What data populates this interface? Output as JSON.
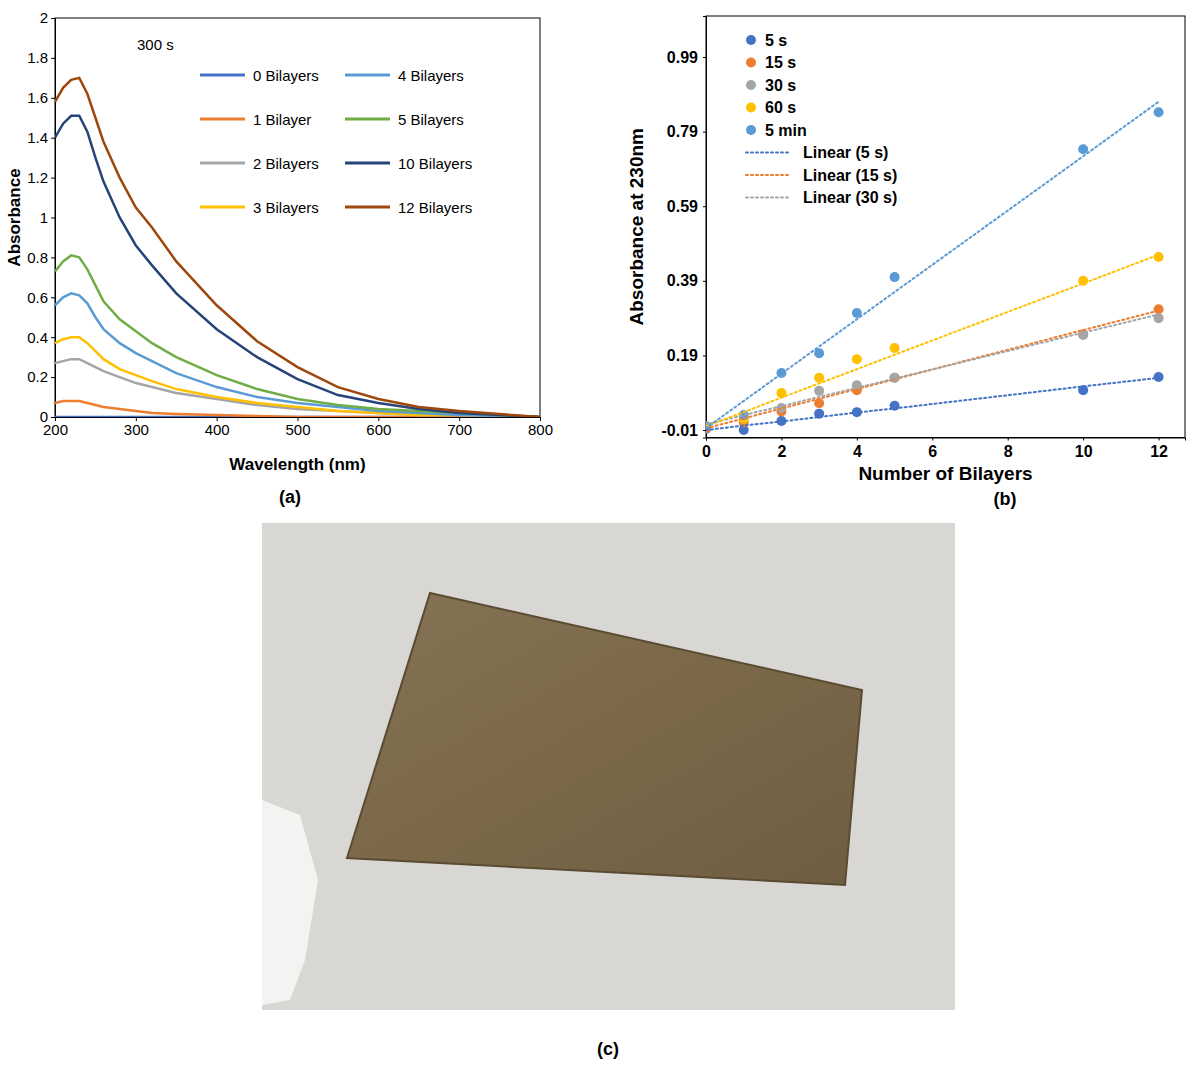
{
  "chart_data": [
    {
      "type": "line",
      "annotations": [
        "300 s"
      ],
      "x_label": "Wavelength (nm)",
      "y_label": "Absorbance",
      "x": [
        200,
        210,
        220,
        230,
        240,
        250,
        260,
        280,
        300,
        320,
        350,
        400,
        450,
        500,
        550,
        600,
        650,
        700,
        750,
        800
      ],
      "xlim": [
        200,
        800
      ],
      "xticks": [
        200,
        300,
        400,
        500,
        600,
        700,
        800
      ],
      "ylim": [
        0,
        2
      ],
      "yticks": [
        0,
        0.2,
        0.4,
        0.6,
        0.8,
        1,
        1.2,
        1.4,
        1.6,
        1.8,
        2
      ],
      "legend": "top-right",
      "series": [
        {
          "name": "0 Bilayers",
          "color": "#4472c4",
          "values": [
            0,
            0,
            0,
            0,
            0,
            0,
            0,
            0,
            0,
            0,
            0,
            0,
            0,
            0,
            0,
            0,
            0,
            0,
            0,
            0
          ]
        },
        {
          "name": "1 Bilayer",
          "color": "#ed7d31",
          "values": [
            0.07,
            0.08,
            0.08,
            0.08,
            0.07,
            0.06,
            0.05,
            0.04,
            0.03,
            0.02,
            0.015,
            0.01,
            0.005,
            0,
            0,
            0,
            0,
            0,
            0,
            0
          ]
        },
        {
          "name": "2 Bilayers",
          "color": "#a5a5a5",
          "values": [
            0.27,
            0.28,
            0.29,
            0.29,
            0.27,
            0.25,
            0.23,
            0.2,
            0.17,
            0.15,
            0.12,
            0.09,
            0.06,
            0.04,
            0.03,
            0.02,
            0.01,
            0.01,
            0.005,
            0
          ]
        },
        {
          "name": "3 Bilayers",
          "color": "#ffc000",
          "values": [
            0.37,
            0.39,
            0.4,
            0.4,
            0.37,
            0.33,
            0.29,
            0.24,
            0.21,
            0.18,
            0.14,
            0.1,
            0.07,
            0.05,
            0.03,
            0.02,
            0.01,
            0.01,
            0.005,
            0
          ]
        },
        {
          "name": "4 Bilayers",
          "color": "#5b9bd5",
          "values": [
            0.56,
            0.6,
            0.62,
            0.61,
            0.57,
            0.5,
            0.44,
            0.37,
            0.32,
            0.28,
            0.22,
            0.15,
            0.1,
            0.07,
            0.05,
            0.03,
            0.02,
            0.01,
            0.005,
            0
          ]
        },
        {
          "name": "5 Bilayers",
          "color": "#70ad47",
          "values": [
            0.73,
            0.78,
            0.81,
            0.8,
            0.74,
            0.66,
            0.58,
            0.49,
            0.43,
            0.37,
            0.3,
            0.21,
            0.14,
            0.09,
            0.06,
            0.04,
            0.03,
            0.02,
            0.01,
            0
          ]
        },
        {
          "name": "10 Bilayers",
          "color": "#264478",
          "values": [
            1.4,
            1.47,
            1.51,
            1.51,
            1.43,
            1.3,
            1.18,
            1,
            0.86,
            0.76,
            0.62,
            0.44,
            0.3,
            0.19,
            0.11,
            0.07,
            0.04,
            0.02,
            0.01,
            0
          ]
        },
        {
          "name": "12 Bilayers",
          "color": "#9e480e",
          "values": [
            1.58,
            1.65,
            1.69,
            1.7,
            1.62,
            1.5,
            1.38,
            1.2,
            1.05,
            0.95,
            0.78,
            0.56,
            0.38,
            0.25,
            0.15,
            0.09,
            0.05,
            0.03,
            0.015,
            0
          ]
        }
      ]
    },
    {
      "type": "scatter",
      "x_label": "Number of Bilayers",
      "y_label": "Absorbance at 230nm",
      "x": [
        0,
        1,
        2,
        3,
        4,
        5,
        10,
        12
      ],
      "xlim": [
        0,
        12.7
      ],
      "xticks": [
        0,
        2,
        4,
        6,
        8,
        10,
        12
      ],
      "ylim": [
        -0.03,
        1.1
      ],
      "yticks": [
        -0.01,
        0.19,
        0.39,
        0.59,
        0.79,
        0.99
      ],
      "legend": "top-left",
      "series": [
        {
          "name": "5 s",
          "color": "#4472c4",
          "marker": "circle",
          "values": [
            -0.007,
            -0.01,
            0.014,
            0.034,
            0.038,
            0.055,
            0.097,
            0.132
          ]
        },
        {
          "name": "15 s",
          "color": "#ed7d31",
          "marker": "circle",
          "values": [
            -0.005,
            0.01,
            0.04,
            0.062,
            0.097,
            0.13,
            0.247,
            0.314
          ]
        },
        {
          "name": "30 s",
          "color": "#a5a5a5",
          "marker": "circle",
          "values": [
            0,
            0.02,
            0.049,
            0.095,
            0.11,
            0.13,
            0.245,
            0.29
          ]
        },
        {
          "name": "60 s",
          "color": "#ffc000",
          "marker": "circle",
          "values": [
            0,
            0.02,
            0.089,
            0.13,
            0.18,
            0.21,
            0.39,
            0.454
          ]
        },
        {
          "name": "5 min",
          "color": "#5b9bd5",
          "marker": "circle",
          "values": [
            0,
            0.03,
            0.143,
            0.196,
            0.304,
            0.4,
            0.743,
            0.842
          ]
        },
        {
          "name": "Linear (5 s)",
          "type": "line",
          "line_style": "dotted",
          "color": "#4472c4",
          "values": [
            -0.01,
            0.002,
            0.013,
            0.025,
            0.037,
            0.048,
            0.107,
            0.13
          ]
        },
        {
          "name": "Linear (15 s)",
          "type": "line",
          "line_style": "dotted",
          "color": "#ed7d31",
          "values": [
            -0.005,
            0.021,
            0.048,
            0.074,
            0.1,
            0.126,
            0.258,
            0.31
          ]
        },
        {
          "name": "Linear (30 s)",
          "type": "line",
          "line_style": "dotted",
          "color": "#a5a5a5",
          "values": [
            0.005,
            0.03,
            0.054,
            0.079,
            0.103,
            0.128,
            0.251,
            0.3
          ]
        },
        {
          "type": "line",
          "line_style": "dotted",
          "color": "#ffc000",
          "values": [
            0,
            0.038,
            0.077,
            0.115,
            0.153,
            0.192,
            0.383,
            0.46
          ]
        },
        {
          "type": "line",
          "line_style": "dotted",
          "color": "#5b9bd5",
          "values": [
            -0.005,
            0.068,
            0.141,
            0.214,
            0.287,
            0.36,
            0.724,
            0.87
          ]
        }
      ]
    }
  ],
  "panel_labels": [
    "(a)",
    "(b)",
    "(c)"
  ]
}
